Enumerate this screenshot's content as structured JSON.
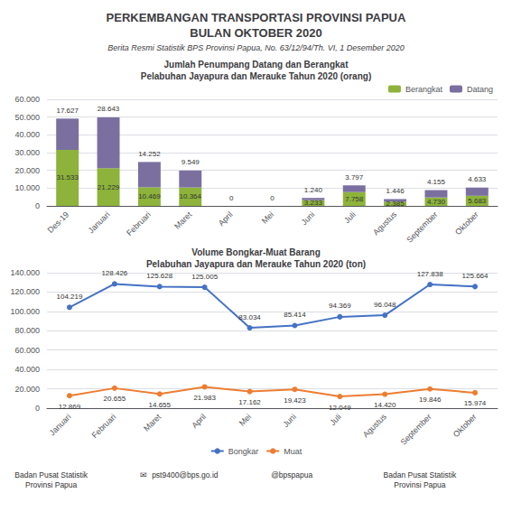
{
  "title": "PERKEMBANGAN TRANSPORTASI PROVINSI PAPUA\nBULAN OKTOBER 2020",
  "subtitle": "Berita Resmi Statistik BPS Provinsi Papua, No. 63/12/94/Th. VI, 1 Desember 2020",
  "annotations": [
    "Badan Pusat Statistik\nProvinsi Papua",
    "✉  pst9400@bps.go.id",
    "@bpspapua",
    "Badan Pusat Statistik\nProvinsi Papua"
  ],
  "chart_data": [
    {
      "type": "bar",
      "title": "Jumlah Penumpang Datang dan Berangkat\nPelabuhan Jayapura dan Merauke Tahun 2020 (orang)",
      "categories": [
        "Des-19",
        "Januari",
        "Februari",
        "Maret",
        "April",
        "Mei",
        "Juni",
        "Juli",
        "Agustus",
        "September",
        "Oktober"
      ],
      "series": [
        {
          "name": "Berangkat",
          "color": "#8db33a",
          "values": [
            31533,
            21229,
            10469,
            10364,
            0,
            0,
            3233,
            7758,
            2385,
            4730,
            5683
          ],
          "value_labels": [
            "31.533",
            "21.229",
            "10.469",
            "10.364",
            "0",
            "0",
            "3.233",
            "7.758",
            "2.385",
            "4.730",
            "5.683"
          ]
        },
        {
          "name": "Datang",
          "color": "#7b6fa0",
          "values": [
            17627,
            28643,
            14252,
            9549,
            0,
            0,
            1240,
            3797,
            1446,
            4155,
            4633
          ],
          "value_labels": [
            "17.627",
            "28.643",
            "14.252",
            "9.549",
            "0",
            "0",
            "1.240",
            "3.797",
            "1.446",
            "4.155",
            "4.633"
          ]
        }
      ],
      "stacked": true,
      "data_labels": true,
      "ylim": [
        0,
        60000
      ],
      "yticks": [
        0,
        {
          "value": 10000,
          "label": "10.000"
        },
        {
          "value": 20000,
          "label": "20.000"
        },
        {
          "value": 30000,
          "label": "30.000"
        },
        {
          "value": 40000,
          "label": "40.000"
        },
        {
          "value": 50000,
          "label": "50.000"
        },
        {
          "value": 60000,
          "label": "60.000"
        }
      ],
      "grid": true,
      "legend": "upper right"
    },
    {
      "type": "line",
      "title": "Volume Bongkar-Muat Barang\nPelabuhan Jayapura dan Merauke Tahun 2020 (ton)",
      "categories": [
        "Januari",
        "Februari",
        "Maret",
        "April",
        "Mei",
        "Juni",
        "Juli",
        "Agustus",
        "September",
        "Oktober"
      ],
      "series": [
        {
          "name": "Bongkar",
          "color": "#4472c4",
          "values": [
            104219,
            128426,
            125628,
            125005,
            83034,
            85414,
            94369,
            96048,
            127838,
            125664
          ],
          "value_labels": [
            "104.219",
            "128.426",
            "125.628",
            "125.005",
            "83.034",
            "85.414",
            "94.369",
            "96.048",
            "127.838",
            "125.664"
          ]
        },
        {
          "name": "Muat",
          "color": "#ed7d31",
          "values": [
            12869,
            20655,
            14655,
            21983,
            17162,
            19423,
            12049,
            14420,
            19846,
            15974
          ],
          "value_labels": [
            "12.869",
            "20.655",
            "14.655",
            "21.983",
            "17.162",
            "19.423",
            "12.049",
            "14.420",
            "19.846",
            "15.974"
          ]
        }
      ],
      "marker": "circle",
      "data_labels": true,
      "ylim": [
        0,
        140000
      ],
      "yticks": [
        0,
        {
          "value": 20000,
          "label": "20.000"
        },
        {
          "value": 40000,
          "label": "40.000"
        },
        {
          "value": 60000,
          "label": "60.000"
        },
        {
          "value": 80000,
          "label": "80.000"
        },
        {
          "value": 100000,
          "label": "100.000"
        },
        {
          "value": 120000,
          "label": "120.000"
        },
        {
          "value": 140000,
          "label": "140.000"
        }
      ],
      "grid": true,
      "legend": "lower center"
    }
  ]
}
